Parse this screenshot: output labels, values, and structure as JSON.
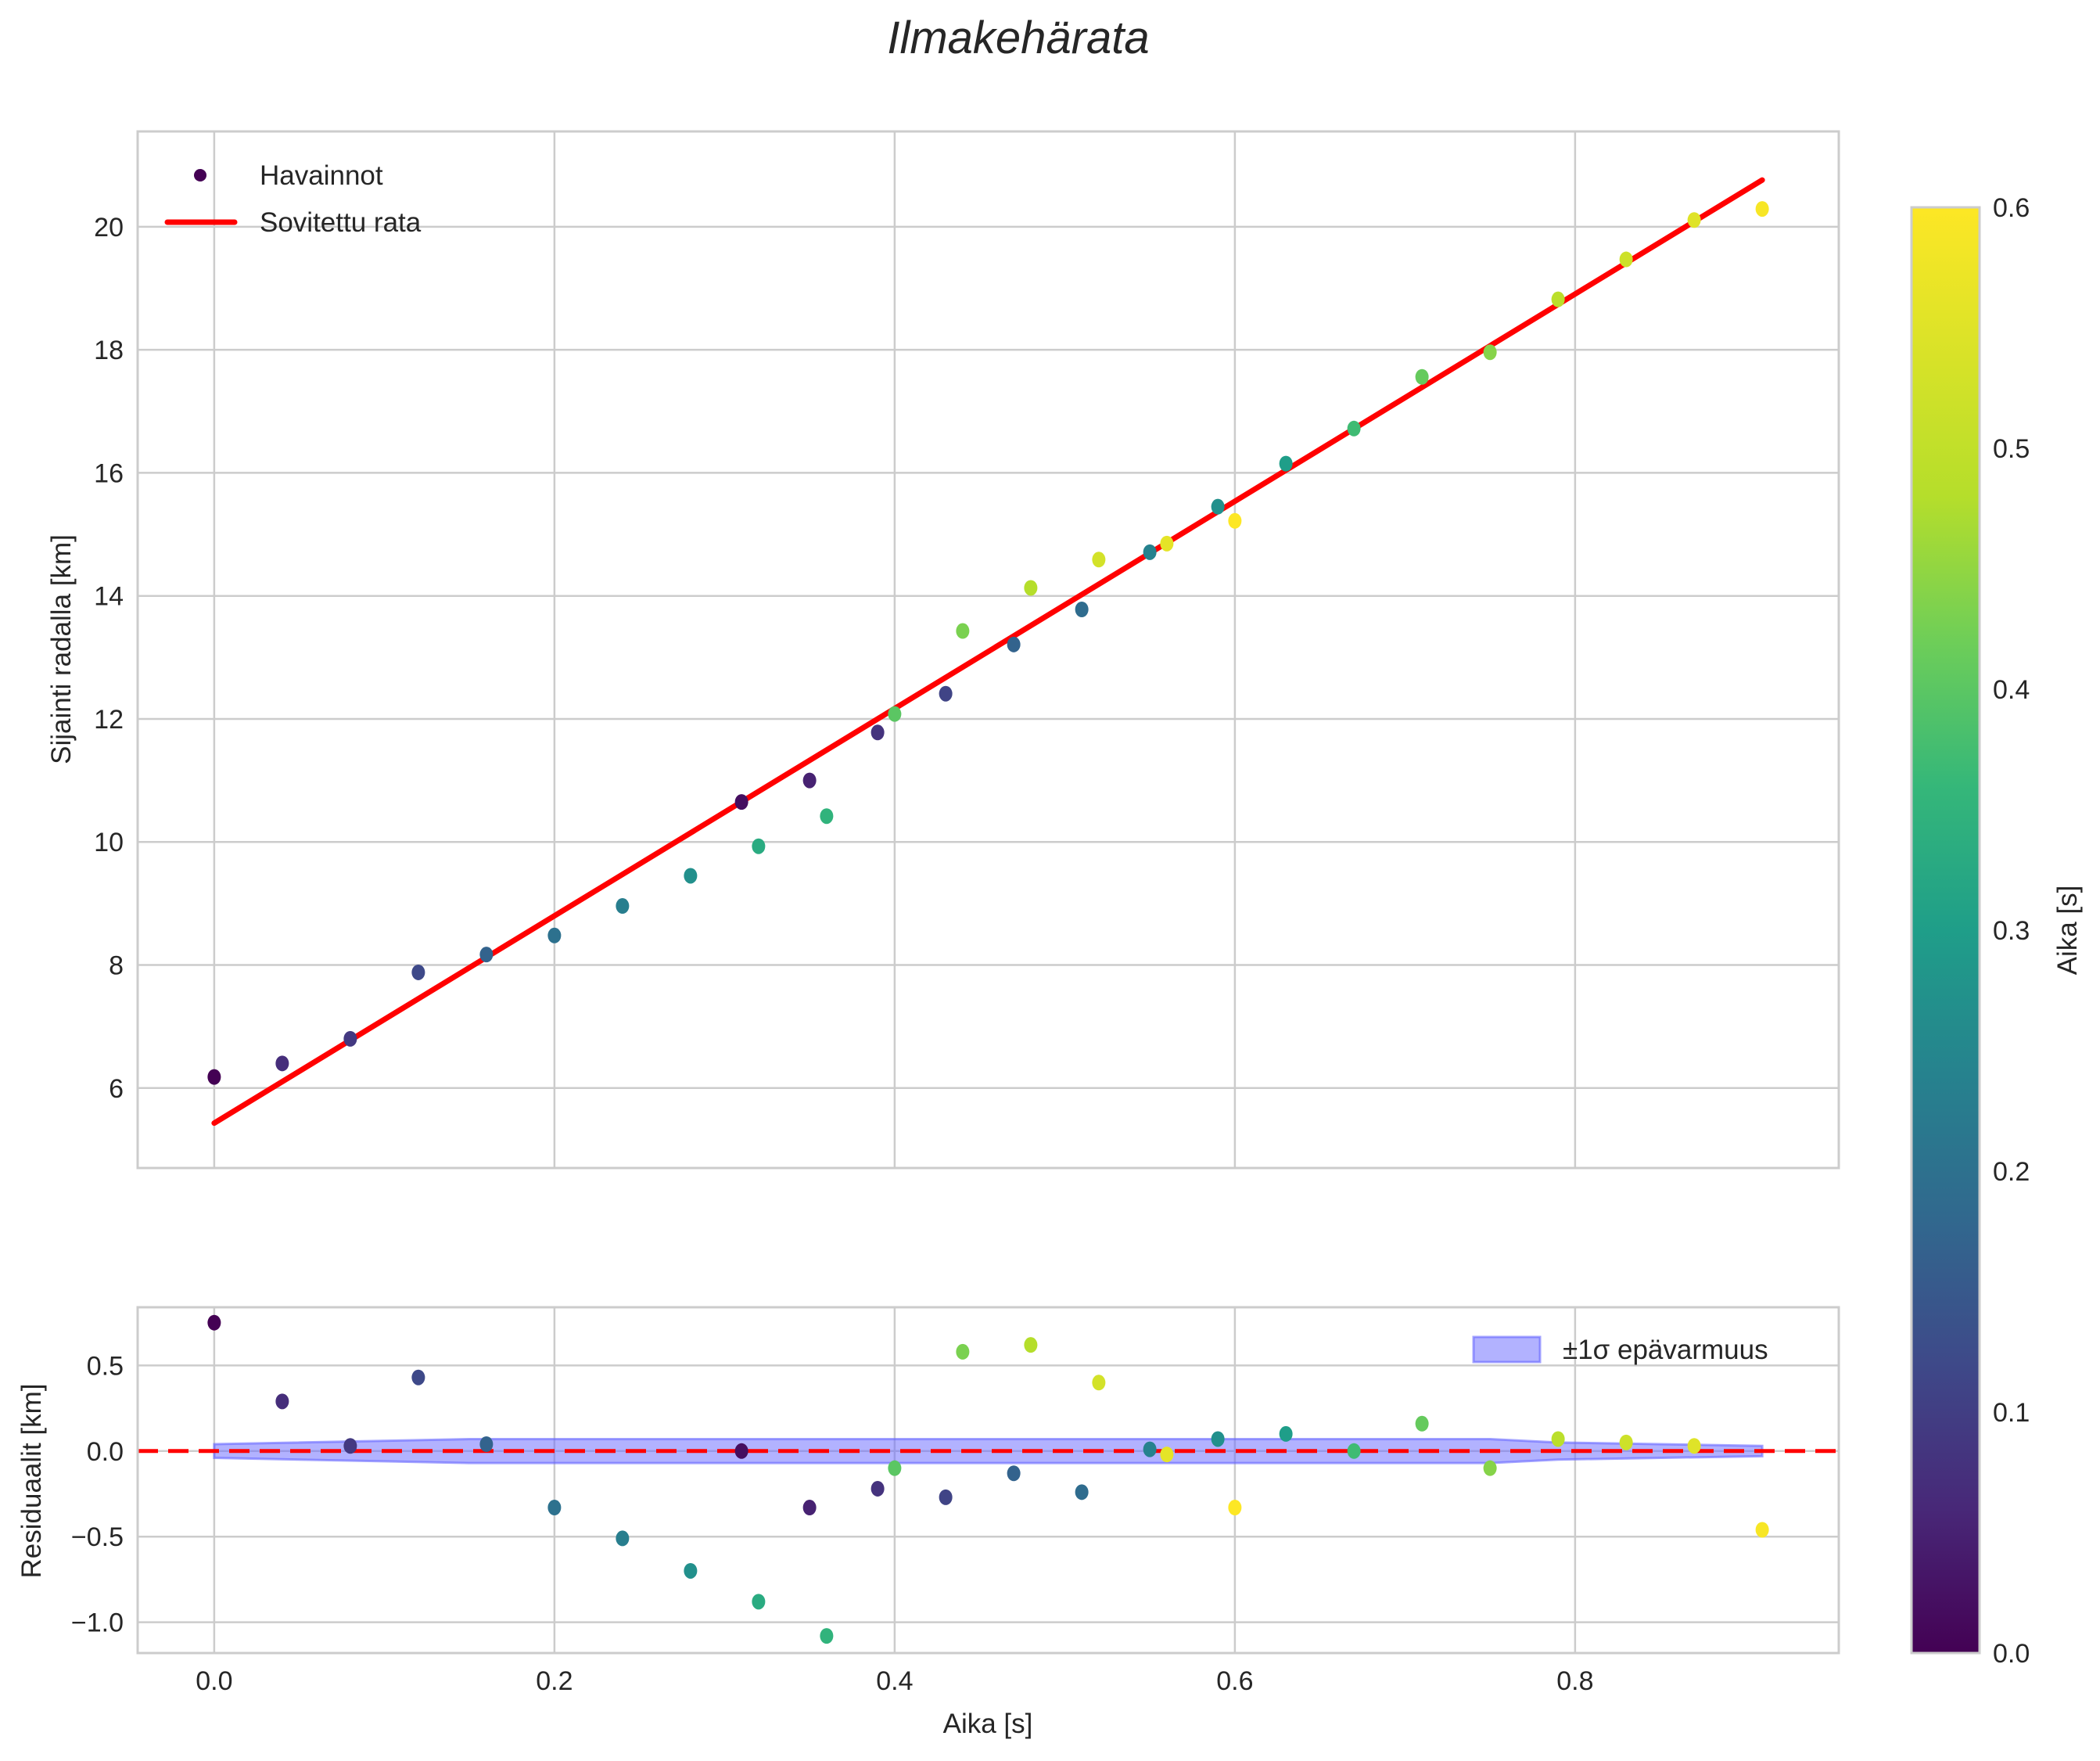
{
  "figure": {
    "title": "Ilmakehärata"
  },
  "main_axes": {
    "ylabel": "Sijainti radalla [km]",
    "yticks": [
      "6",
      "8",
      "10",
      "12",
      "14",
      "16",
      "18",
      "20"
    ],
    "legend": {
      "scatter_label": "Havainnot",
      "line_label": "Sovitettu rata"
    }
  },
  "residual_axes": {
    "ylabel": "Residuaalit [km]",
    "xlabel": "Aika [s]",
    "yticks": [
      "−1.0",
      "−0.5",
      "0.0",
      "0.5"
    ],
    "xticks": [
      "0.0",
      "0.2",
      "0.4",
      "0.6",
      "0.8"
    ],
    "legend": {
      "band_label": "±1σ epävarmuus"
    }
  },
  "colorbar": {
    "label": "Aika [s]",
    "ticks": [
      "0.0",
      "0.1",
      "0.2",
      "0.3",
      "0.4",
      "0.5",
      "0.6"
    ]
  },
  "chart_data": [
    {
      "type": "scatter",
      "title": "Ilmakehärata",
      "xlabel": "Aika [s]",
      "ylabel": "Sijainti radalla [km]",
      "xlim": [
        -0.045,
        0.955
      ],
      "ylim": [
        4.7,
        21.55
      ],
      "grid": true,
      "legend_position": "upper left",
      "series": [
        {
          "name": "Havainnot",
          "kind": "scatter",
          "colormap": "viridis",
          "color_range": [
            0.0,
            0.6
          ],
          "x": [
            0.0,
            0.04,
            0.08,
            0.12,
            0.16,
            0.2,
            0.24,
            0.28,
            0.31,
            0.32,
            0.35,
            0.36,
            0.39,
            0.4,
            0.43,
            0.44,
            0.47,
            0.48,
            0.51,
            0.52,
            0.55,
            0.56,
            0.59,
            0.6,
            0.63,
            0.67,
            0.71,
            0.75,
            0.79,
            0.83,
            0.87,
            0.91
          ],
          "y": [
            6.18,
            6.4,
            6.8,
            7.88,
            8.17,
            8.48,
            8.96,
            9.45,
            10.65,
            9.93,
            11.0,
            10.42,
            11.78,
            12.08,
            12.41,
            13.43,
            13.21,
            14.13,
            13.78,
            14.59,
            14.71,
            14.85,
            15.45,
            15.22,
            16.15,
            16.72,
            17.56,
            17.96,
            18.82,
            19.47,
            20.11,
            20.29
          ],
          "c": [
            0.0,
            0.07,
            0.09,
            0.12,
            0.17,
            0.2,
            0.23,
            0.27,
            0.02,
            0.33,
            0.05,
            0.35,
            0.08,
            0.4,
            0.11,
            0.43,
            0.17,
            0.48,
            0.19,
            0.53,
            0.24,
            0.56,
            0.27,
            0.6,
            0.3,
            0.37,
            0.41,
            0.44,
            0.49,
            0.52,
            0.55,
            0.59
          ]
        },
        {
          "name": "Sovitettu rata",
          "kind": "line",
          "color": "#ff0000",
          "x": [
            0.0,
            0.91
          ],
          "y": [
            5.43,
            20.76
          ]
        }
      ]
    },
    {
      "type": "scatter",
      "title": "",
      "xlabel": "Aika [s]",
      "ylabel": "Residuaalit [km]",
      "xlim": [
        -0.045,
        0.955
      ],
      "ylim": [
        -1.18,
        0.84
      ],
      "xticks": [
        0.0,
        0.2,
        0.4,
        0.6,
        0.8
      ],
      "yticks": [
        -1.0,
        -0.5,
        0.0,
        0.5
      ],
      "grid": true,
      "legend_position": "upper right",
      "series": [
        {
          "name": "Residuaalit",
          "kind": "scatter",
          "colormap": "viridis",
          "x": [
            0.0,
            0.04,
            0.08,
            0.12,
            0.16,
            0.2,
            0.24,
            0.28,
            0.31,
            0.32,
            0.35,
            0.36,
            0.39,
            0.4,
            0.43,
            0.44,
            0.47,
            0.48,
            0.51,
            0.52,
            0.55,
            0.56,
            0.59,
            0.6,
            0.63,
            0.67,
            0.71,
            0.75,
            0.79,
            0.83,
            0.87,
            0.91
          ],
          "y": [
            0.75,
            0.29,
            0.03,
            0.43,
            0.04,
            -0.33,
            -0.51,
            -0.7,
            0.0,
            -0.88,
            -0.33,
            -1.08,
            -0.22,
            -0.1,
            -0.27,
            0.58,
            -0.13,
            0.62,
            -0.24,
            0.4,
            0.01,
            -0.02,
            0.07,
            -0.33,
            0.1,
            0.0,
            0.16,
            -0.1,
            0.07,
            0.05,
            0.03,
            -0.46
          ],
          "c": [
            0.0,
            0.07,
            0.09,
            0.12,
            0.17,
            0.2,
            0.23,
            0.27,
            0.02,
            0.33,
            0.05,
            0.35,
            0.08,
            0.4,
            0.11,
            0.43,
            0.17,
            0.48,
            0.19,
            0.53,
            0.24,
            0.56,
            0.27,
            0.6,
            0.3,
            0.37,
            0.41,
            0.44,
            0.49,
            0.52,
            0.55,
            0.59
          ]
        },
        {
          "name": "±1σ epävarmuus",
          "kind": "band",
          "color": "#6666ff",
          "alpha": 0.5,
          "x": [
            0.0,
            0.15,
            0.75,
            0.79,
            0.91
          ],
          "upper": [
            0.04,
            0.07,
            0.07,
            0.05,
            0.03
          ],
          "lower": [
            -0.04,
            -0.07,
            -0.07,
            -0.05,
            -0.03
          ]
        },
        {
          "name": "zero-line",
          "kind": "hline",
          "y": 0.0,
          "color": "#ff0000",
          "style": "dashed"
        }
      ]
    }
  ]
}
